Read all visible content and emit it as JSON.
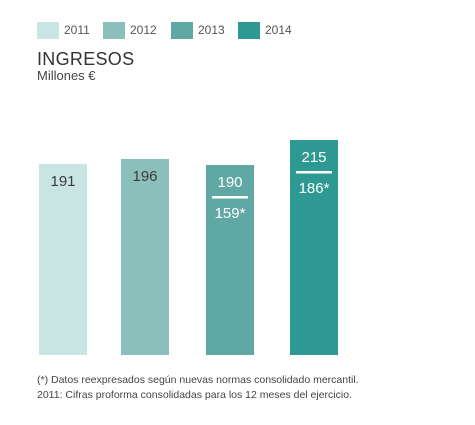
{
  "chart_data": {
    "type": "bar",
    "title": "INGRESOS",
    "subtitle": "Millones €",
    "categories": [
      "2011",
      "2012",
      "2013",
      "2014"
    ],
    "values": [
      191,
      196,
      190,
      215
    ],
    "restated_values": [
      null,
      null,
      159,
      186
    ],
    "value_labels": [
      "191",
      "196",
      "190",
      "215"
    ],
    "restated_labels": [
      "",
      "",
      "159*",
      "186*"
    ],
    "colors": [
      "#c9e5e3",
      "#8bbfbb",
      "#5fa8a4",
      "#2e9993"
    ],
    "legend": [
      "2011",
      "2012",
      "2013",
      "2014"
    ],
    "legend_placement": "top",
    "ylim": [
      0,
      230
    ],
    "grid": false
  },
  "footnotes": [
    "(*) Datos reexpresados según nuevas normas consolidado mercantil.",
    "2011: Cifras proforma consolidadas para los 12 meses del ejercicio."
  ]
}
